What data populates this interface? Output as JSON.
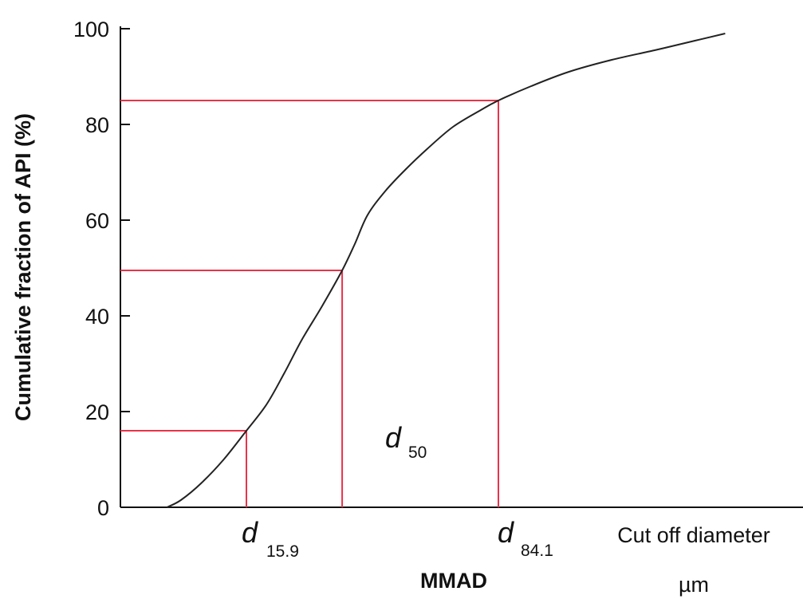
{
  "chart_data": {
    "type": "line",
    "ylabel": "Cumulative fraction of API (%)",
    "xlabel": "MMAD",
    "x_axis_caption_line1": "Cut off diameter",
    "x_axis_caption_line2": "µm",
    "ylim": [
      0,
      100
    ],
    "yticks": [
      "0",
      "20",
      "40",
      "60",
      "80",
      "100"
    ],
    "grid": false,
    "series": [
      {
        "points": [
          [
            1.85,
            0
          ],
          [
            2.4,
            1.5
          ],
          [
            3.2,
            5
          ],
          [
            4.1,
            10
          ],
          [
            5.0,
            16
          ],
          [
            5.8,
            21.5
          ],
          [
            6.5,
            28
          ],
          [
            7.2,
            35
          ],
          [
            8.0,
            42
          ],
          [
            8.8,
            49.5
          ],
          [
            9.3,
            55
          ],
          [
            9.8,
            61
          ],
          [
            10.5,
            66
          ],
          [
            11.3,
            70.5
          ],
          [
            12.2,
            75
          ],
          [
            13.2,
            79.5
          ],
          [
            14.3,
            83
          ],
          [
            15.0,
            85
          ],
          [
            16.3,
            88
          ],
          [
            17.8,
            91
          ],
          [
            19.5,
            93.5
          ],
          [
            21.2,
            95.5
          ],
          [
            22.8,
            97.5
          ],
          [
            24.0,
            99
          ]
        ]
      }
    ],
    "annotations": [
      {
        "label": "d",
        "subscript": "15.9",
        "y": 16,
        "x": 5.0
      },
      {
        "label": "d",
        "subscript": "50",
        "y": 49.5,
        "x": 8.8
      },
      {
        "label": "d",
        "subscript": "84.1",
        "y": 85,
        "x": 15.0
      }
    ],
    "line_color": "#222222",
    "guide_color": "#e8334a"
  }
}
